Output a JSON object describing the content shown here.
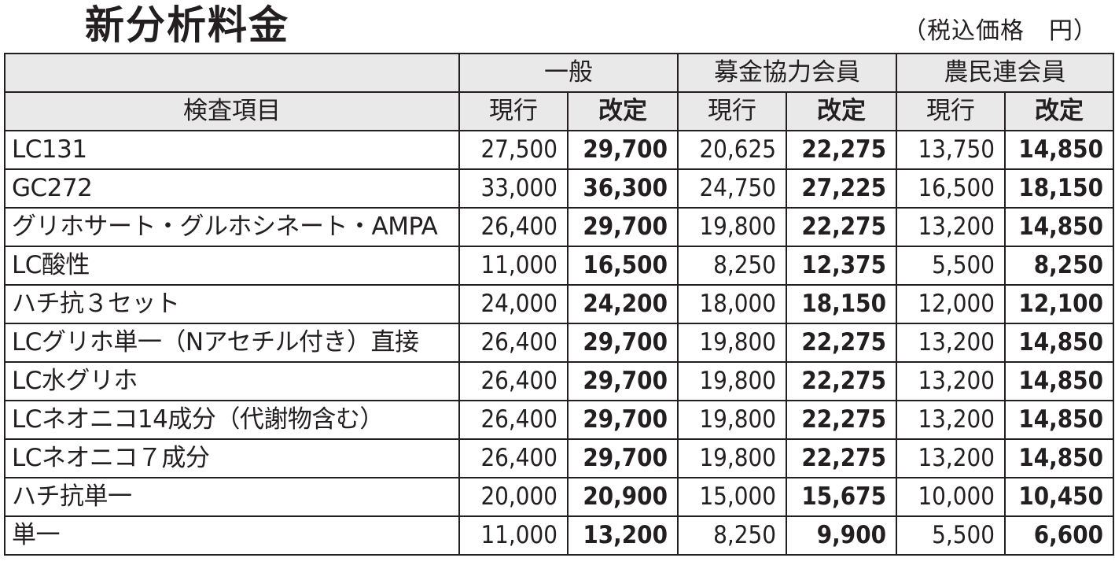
{
  "title": "新分析料金",
  "note": "（税込価格　円）",
  "header": {
    "item_label": "検査項目",
    "groups": [
      "一般",
      "募金協力会員",
      "農民連会員"
    ],
    "current_label": "現行",
    "revised_label": "改定"
  },
  "rows": [
    {
      "item": "LC131",
      "values": [
        "27,500",
        "29,700",
        "20,625",
        "22,275",
        "13,750",
        "14,850"
      ]
    },
    {
      "item": "GC272",
      "values": [
        "33,000",
        "36,300",
        "24,750",
        "27,225",
        "16,500",
        "18,150"
      ]
    },
    {
      "item": "グリホサート・グルホシネート・AMPA",
      "values": [
        "26,400",
        "29,700",
        "19,800",
        "22,275",
        "13,200",
        "14,850"
      ]
    },
    {
      "item": "LC酸性",
      "values": [
        "11,000",
        "16,500",
        "8,250",
        "12,375",
        "5,500",
        "8,250"
      ]
    },
    {
      "item": "ハチ抗３セット",
      "values": [
        "24,000",
        "24,200",
        "18,000",
        "18,150",
        "12,000",
        "12,100"
      ]
    },
    {
      "item": "LCグリホ単一（Nアセチル付き）直接",
      "values": [
        "26,400",
        "29,700",
        "19,800",
        "22,275",
        "13,200",
        "14,850"
      ]
    },
    {
      "item": "LC水グリホ",
      "values": [
        "26,400",
        "29,700",
        "19,800",
        "22,275",
        "13,200",
        "14,850"
      ]
    },
    {
      "item": "LCネオニコ14成分（代謝物含む）",
      "values": [
        "26,400",
        "29,700",
        "19,800",
        "22,275",
        "13,200",
        "14,850"
      ]
    },
    {
      "item": "LCネオニコ７成分",
      "values": [
        "26,400",
        "29,700",
        "19,800",
        "22,275",
        "13,200",
        "14,850"
      ]
    },
    {
      "item": "ハチ抗単一",
      "values": [
        "20,000",
        "20,900",
        "15,000",
        "15,675",
        "10,000",
        "10,450"
      ]
    },
    {
      "item": "単一",
      "values": [
        "11,000",
        "13,200",
        "8,250",
        "9,900",
        "5,500",
        "6,600"
      ]
    }
  ],
  "colors": {
    "header_bg": "#e9e9ea",
    "text": "#231f20",
    "border": "#231f20"
  }
}
